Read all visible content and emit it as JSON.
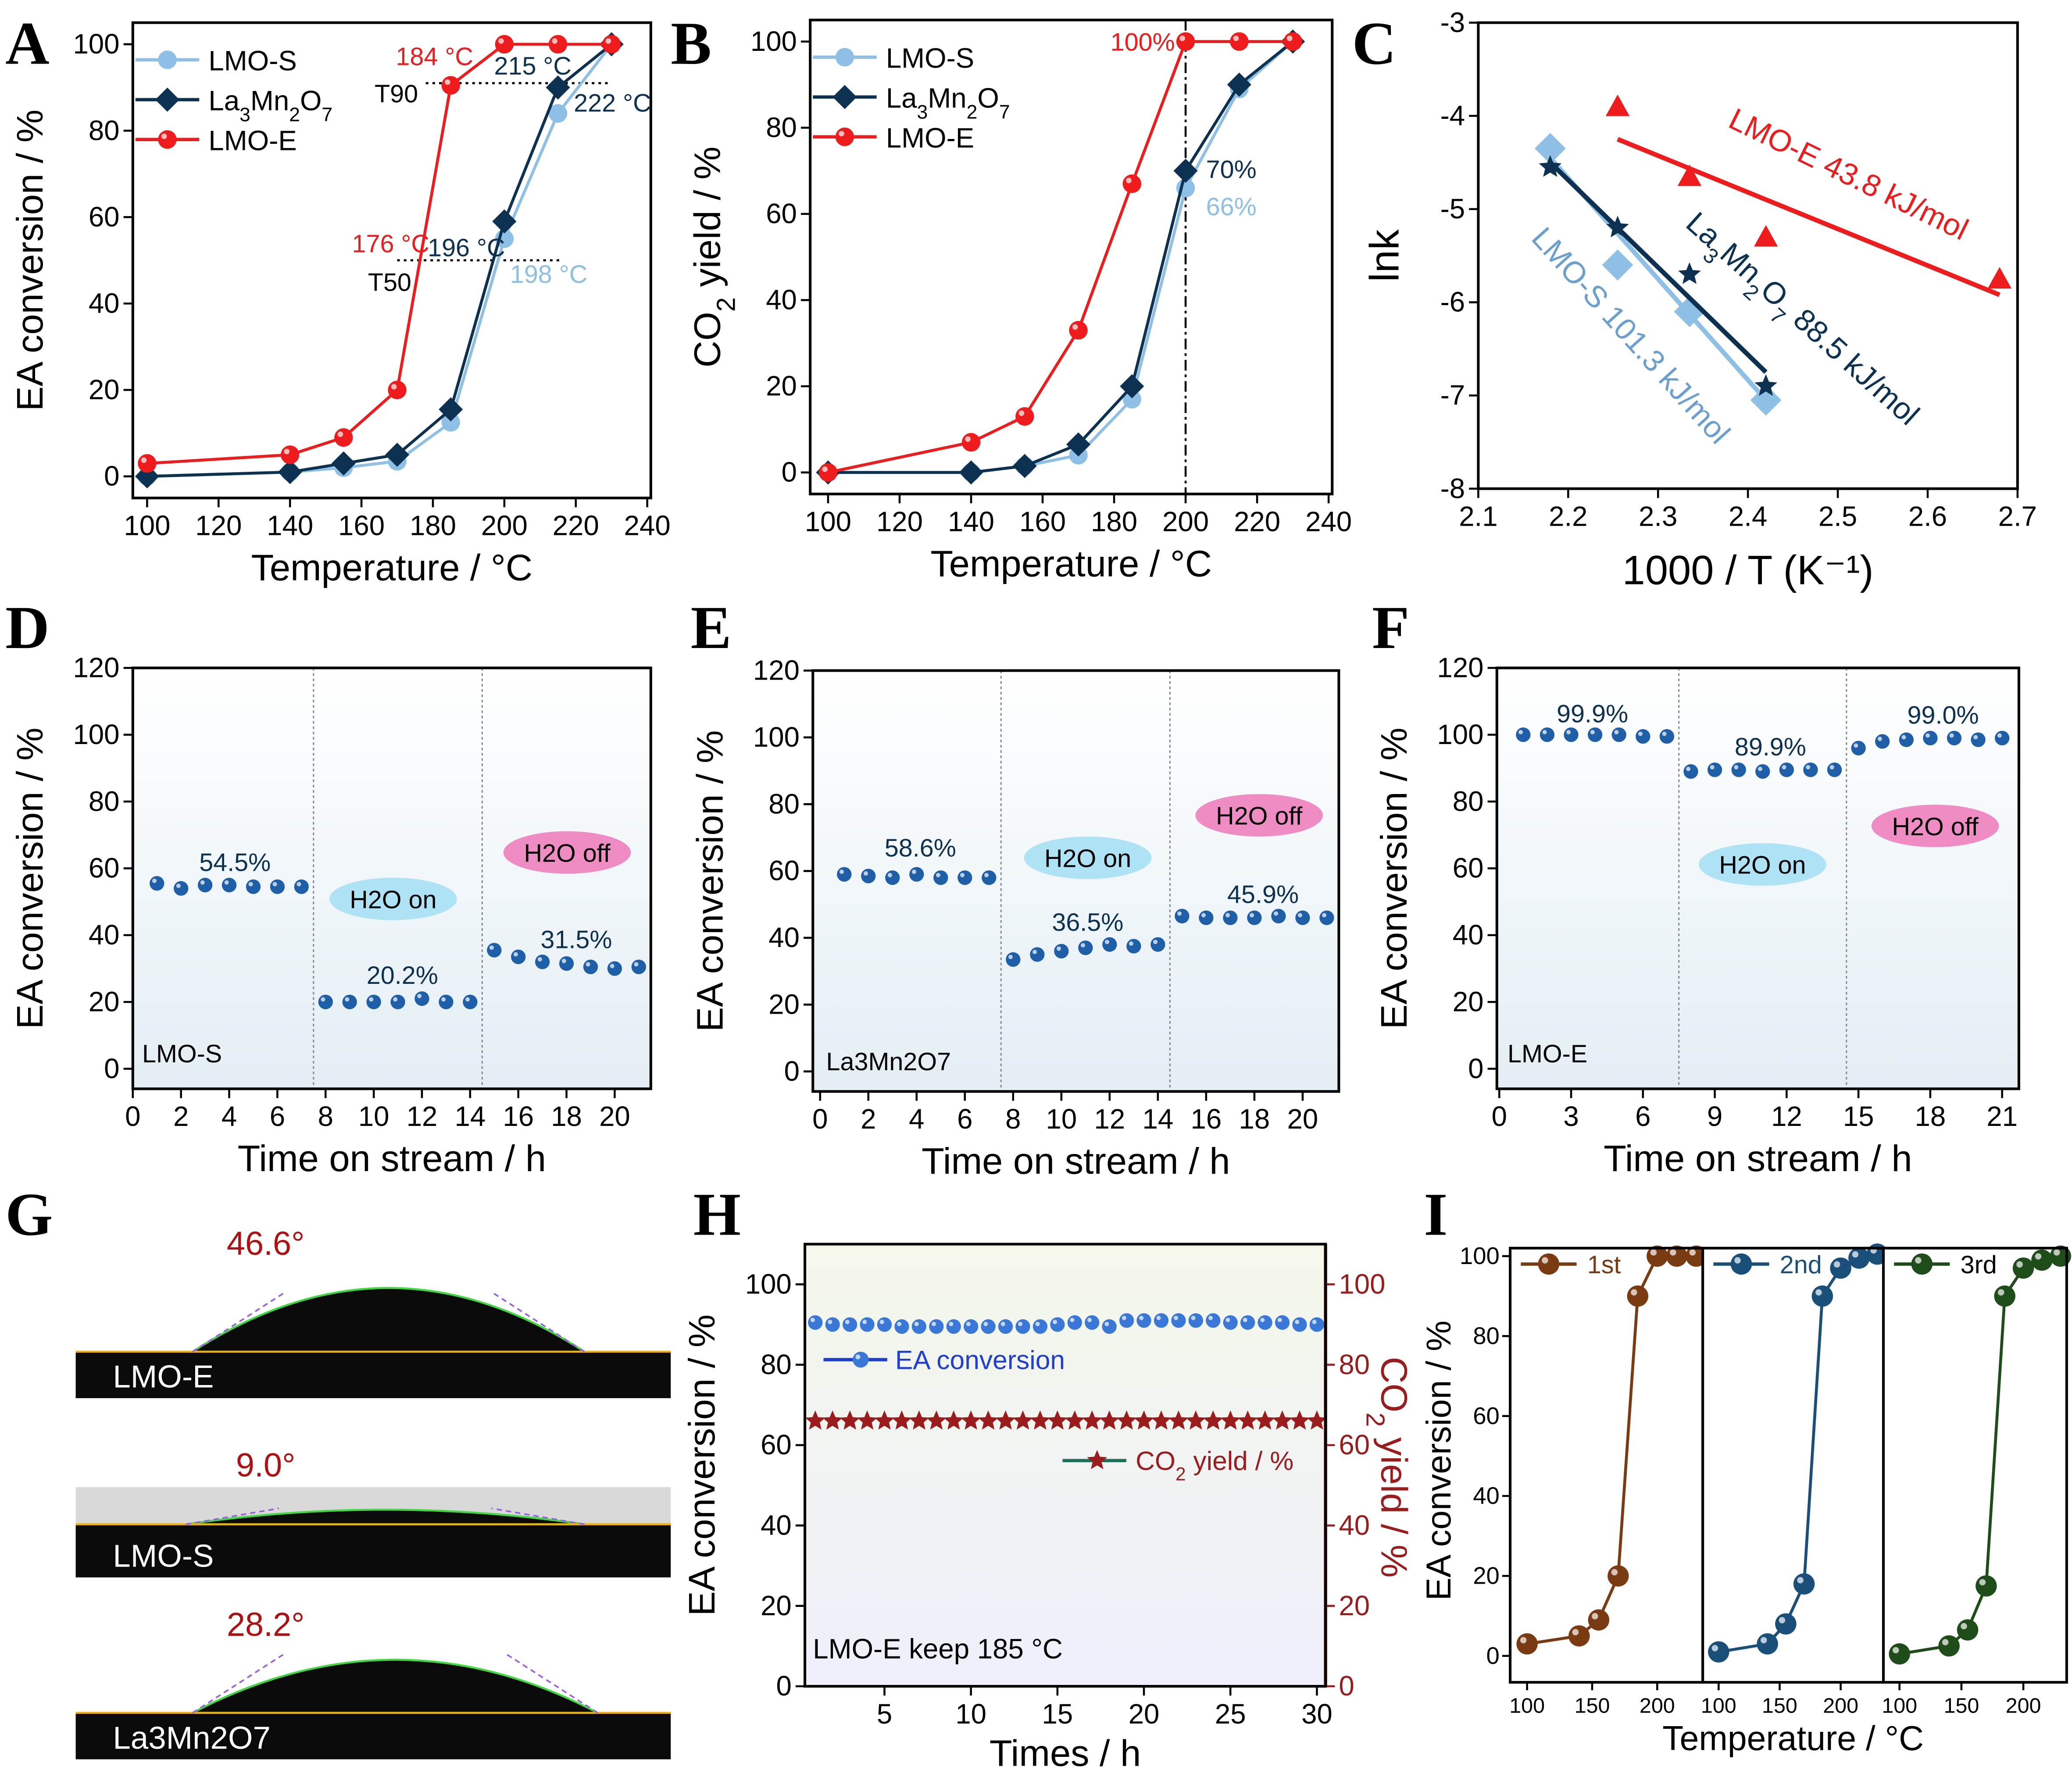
{
  "panel_labels": [
    "A",
    "B",
    "C",
    "D",
    "E",
    "F",
    "G",
    "H",
    "I"
  ],
  "colors": {
    "LMO-S": "#8ec0e6",
    "La3Mn2O7": "#0d3150",
    "LMO-E": "#ee1c1c",
    "stability_dots": "#1f5fa8",
    "h2o_on": "#aee2f5",
    "h2o_off": "#f08cc4",
    "co2_axis": "#9b1c1c"
  },
  "contact_angles": [
    {
      "sample": "LMO-E",
      "angle": "46.6°"
    },
    {
      "sample": "LMO-S",
      "angle": "9.0°"
    },
    {
      "sample": "La3Mn2O7",
      "angle": "28.2°"
    }
  ],
  "chart_data": [
    {
      "panel": "A",
      "type": "line",
      "xlabel": "Temperature / °C",
      "ylabel": "EA conversion / %",
      "xlim": [
        96,
        241
      ],
      "ylim": [
        -5,
        105
      ],
      "xticks": [
        100,
        120,
        140,
        160,
        180,
        200,
        220,
        240
      ],
      "yticks": [
        0,
        20,
        40,
        60,
        80,
        100
      ],
      "legend": "top-left",
      "series": [
        {
          "name": "LMO-S",
          "color": "#8ec0e6",
          "marker": "circle",
          "x": [
            100,
            140,
            155,
            170,
            185,
            200,
            215,
            230
          ],
          "y": [
            0,
            1,
            2,
            3.5,
            12.5,
            55,
            84,
            100
          ]
        },
        {
          "name": "La3Mn2O7",
          "color": "#0d3150",
          "marker": "diamond",
          "x": [
            100,
            140,
            155,
            170,
            185,
            200,
            215,
            230
          ],
          "y": [
            0,
            1,
            3,
            5,
            15.5,
            59,
            90,
            100
          ]
        },
        {
          "name": "LMO-E",
          "color": "#ee1c1c",
          "marker": "sphere",
          "x": [
            100,
            140,
            155,
            170,
            185,
            200,
            215,
            230
          ],
          "y": [
            3,
            5,
            9,
            20,
            90.5,
            100,
            100,
            100
          ]
        }
      ],
      "annotations": [
        {
          "text": "184 °C",
          "color": "#ee1c1c"
        },
        {
          "text": "215 °C",
          "color": "#0d3150"
        },
        {
          "text": "T90",
          "color": "#000000"
        },
        {
          "text": "222 °C",
          "color": "#0d3150"
        },
        {
          "text": "176 °C",
          "color": "#ee1c1c"
        },
        {
          "text": "196 °C",
          "color": "#0d3150"
        },
        {
          "text": "T50",
          "color": "#000000"
        },
        {
          "text": "198 °C",
          "color": "#8ec0e6"
        }
      ]
    },
    {
      "panel": "B",
      "type": "line",
      "xlabel": "Temperature / °C",
      "ylabel": "CO2 yield / %",
      "xlim": [
        95,
        241
      ],
      "ylim": [
        -5,
        105
      ],
      "xticks": [
        100,
        120,
        140,
        160,
        180,
        200,
        220,
        240
      ],
      "yticks": [
        0,
        20,
        40,
        60,
        80,
        100
      ],
      "legend": "top-left",
      "series": [
        {
          "name": "LMO-S",
          "color": "#8ec0e6",
          "marker": "circle",
          "x": [
            100,
            140,
            155,
            170,
            185,
            200,
            215,
            230
          ],
          "y": [
            0,
            0,
            1.5,
            4,
            17,
            66,
            89,
            100
          ]
        },
        {
          "name": "La3Mn2O7",
          "color": "#0d3150",
          "marker": "diamond",
          "x": [
            100,
            140,
            155,
            170,
            185,
            200,
            215,
            230
          ],
          "y": [
            0,
            0,
            1.5,
            6.5,
            20,
            70,
            90,
            100
          ]
        },
        {
          "name": "LMO-E",
          "color": "#ee1c1c",
          "marker": "sphere",
          "x": [
            100,
            140,
            155,
            170,
            185,
            200,
            215,
            230
          ],
          "y": [
            0,
            7,
            13,
            33,
            67,
            100,
            100,
            100
          ]
        }
      ],
      "annotations": [
        {
          "text": "100%",
          "color": "#ee1c1c"
        },
        {
          "text": "70%",
          "color": "#0d3150"
        },
        {
          "text": "66%",
          "color": "#8ec0e6"
        }
      ]
    },
    {
      "panel": "C",
      "type": "scatter",
      "xlabel": "1000 / T (K⁻¹)",
      "ylabel": "lnk",
      "xlim": [
        2.1,
        2.7
      ],
      "ylim": [
        -8,
        -3
      ],
      "xticks": [
        2.1,
        2.2,
        2.3,
        2.4,
        2.5,
        2.6,
        2.7
      ],
      "yticks": [
        -3,
        -4,
        -5,
        -6,
        -7,
        -8
      ],
      "series": [
        {
          "name": "LMO-E",
          "color": "#ee1c1c",
          "marker": "triangle",
          "x": [
            2.255,
            2.335,
            2.42,
            2.68
          ],
          "y": [
            -3.9,
            -4.65,
            -5.3,
            -5.75
          ],
          "fit": {
            "x": [
              2.255,
              2.68
            ],
            "y": [
              -4.25,
              -5.92
            ]
          }
        },
        {
          "name": "LMO-S",
          "color": "#8ec0e6",
          "marker": "diamond",
          "x": [
            2.18,
            2.255,
            2.335,
            2.42
          ],
          "y": [
            -4.35,
            -5.6,
            -6.1,
            -7.05
          ],
          "fit": {
            "x": [
              2.18,
              2.42
            ],
            "y": [
              -4.45,
              -7.05
            ]
          }
        },
        {
          "name": "La3Mn2O7",
          "color": "#0d3150",
          "marker": "star",
          "x": [
            2.18,
            2.255,
            2.335,
            2.42
          ],
          "y": [
            -4.55,
            -5.2,
            -5.7,
            -6.9
          ],
          "fit": {
            "x": [
              2.18,
              2.42
            ],
            "y": [
              -4.5,
              -6.75
            ]
          }
        }
      ],
      "annotations": [
        {
          "text": "LMO-E 43.8 kJ/mol",
          "color": "#ee1c1c"
        },
        {
          "text": "La3Mn2O7 88.5 kJ/mol",
          "color": "#0d3150"
        },
        {
          "text": "LMO-S 101.3 kJ/mol",
          "color": "#6a9fd0"
        }
      ]
    },
    {
      "panel": "D",
      "type": "scatter",
      "xlabel": "Time on stream / h",
      "ylabel": "EA conversion / %",
      "xlim": [
        0,
        21.5
      ],
      "ylim": [
        -6,
        120
      ],
      "xticks": [
        0,
        2,
        4,
        6,
        8,
        10,
        12,
        14,
        16,
        18,
        20
      ],
      "yticks": [
        0,
        20,
        40,
        60,
        80,
        100,
        120
      ],
      "dividers": [
        7.5,
        14.5
      ],
      "series": [
        {
          "color": "#1f5fa8",
          "marker": "sphere",
          "x": [
            1,
            2,
            3,
            4,
            5,
            6,
            7,
            8,
            9,
            10,
            11,
            12,
            13,
            14,
            15,
            16,
            17,
            18,
            19,
            20,
            21
          ],
          "y": [
            55.5,
            54,
            55,
            55,
            54.5,
            54.5,
            54.5,
            20,
            20,
            20,
            20,
            21,
            20,
            20,
            35.5,
            33.5,
            32,
            31.5,
            30.5,
            30,
            30.5
          ]
        }
      ],
      "annotations": [
        {
          "text": "54.5%",
          "color": "#0d3150"
        },
        {
          "text": "20.2%",
          "color": "#0d3150"
        },
        {
          "text": "31.5%",
          "color": "#0d3150"
        },
        {
          "text": "LMO-S",
          "color": "#000000"
        }
      ],
      "bubbles": [
        {
          "text": "H2O on",
          "color": "#aee2f5"
        },
        {
          "text": "H2O off",
          "color": "#f08cc4"
        }
      ]
    },
    {
      "panel": "E",
      "type": "scatter",
      "xlabel": "Time on stream / h",
      "ylabel": "EA conversion / %",
      "xlim": [
        -0.3,
        21.5
      ],
      "ylim": [
        -6,
        120
      ],
      "xticks": [
        0,
        2,
        4,
        6,
        8,
        10,
        12,
        14,
        16,
        18,
        20
      ],
      "yticks": [
        0,
        20,
        40,
        60,
        80,
        100,
        120
      ],
      "dividers": [
        7.5,
        14.5
      ],
      "series": [
        {
          "color": "#1f5fa8",
          "marker": "sphere",
          "x": [
            1,
            2,
            3,
            4,
            5,
            6,
            7,
            8,
            9,
            10,
            11,
            12,
            13,
            14,
            15,
            16,
            17,
            18,
            19,
            20,
            21
          ],
          "y": [
            59,
            58.5,
            58,
            59,
            58,
            58,
            58,
            33.5,
            35,
            36,
            37,
            38,
            37.5,
            38,
            46.5,
            46,
            46,
            46,
            46.5,
            46,
            46
          ]
        }
      ],
      "annotations": [
        {
          "text": "58.6%",
          "color": "#0d3150"
        },
        {
          "text": "36.5%",
          "color": "#0d3150"
        },
        {
          "text": "45.9%",
          "color": "#0d3150"
        },
        {
          "text": "La3Mn2O7",
          "color": "#000000"
        }
      ],
      "bubbles": [
        {
          "text": "H2O on",
          "color": "#aee2f5"
        },
        {
          "text": "H2O off",
          "color": "#f08cc4"
        }
      ]
    },
    {
      "panel": "F",
      "type": "scatter",
      "xlabel": "Time on stream / h",
      "ylabel": "EA conversion / %",
      "xlim": [
        -0.1,
        21.7
      ],
      "ylim": [
        -6,
        120
      ],
      "xticks": [
        0,
        3,
        6,
        9,
        12,
        15,
        18,
        21
      ],
      "yticks": [
        0,
        20,
        40,
        60,
        80,
        100,
        120
      ],
      "dividers": [
        7.5,
        14.5
      ],
      "series": [
        {
          "color": "#1f5fa8",
          "marker": "sphere",
          "x": [
            1,
            2,
            3,
            4,
            5,
            6,
            7,
            8,
            9,
            10,
            11,
            12,
            13,
            14,
            15,
            16,
            17,
            18,
            19,
            20,
            21
          ],
          "y": [
            100,
            100,
            100,
            100,
            100,
            99.5,
            99.5,
            89,
            89.5,
            89.5,
            89,
            89.5,
            89.5,
            89.5,
            96,
            98,
            98.5,
            99,
            99,
            98.5,
            99
          ]
        }
      ],
      "annotations": [
        {
          "text": "99.9%",
          "color": "#0d3150"
        },
        {
          "text": "89.9%",
          "color": "#0d3150"
        },
        {
          "text": "99.0%",
          "color": "#0d3150"
        },
        {
          "text": "LMO-E",
          "color": "#000000"
        }
      ],
      "bubbles": [
        {
          "text": "H2O on",
          "color": "#aee2f5"
        },
        {
          "text": "H2O off",
          "color": "#f08cc4"
        }
      ]
    },
    {
      "panel": "H",
      "type": "scatter",
      "xlabel": "Times / h",
      "ylabel": "EA conversion / %",
      "y2label": "CO2 yield / %",
      "xlim": [
        0.4,
        30.5
      ],
      "ylim": [
        0,
        110
      ],
      "y2lim": [
        0,
        110
      ],
      "xticks": [
        5,
        10,
        15,
        20,
        25,
        30
      ],
      "yticks": [
        0,
        20,
        40,
        60,
        80,
        100
      ],
      "y2ticks": [
        0,
        20,
        40,
        60,
        80,
        100
      ],
      "series": [
        {
          "name": "EA conversion",
          "color": "#3a78d8",
          "marker": "sphere",
          "axis": "left",
          "x": [
            1,
            2,
            3,
            4,
            5,
            6,
            7,
            8,
            9,
            10,
            11,
            12,
            13,
            14,
            15,
            16,
            17,
            18,
            19,
            20,
            21,
            22,
            23,
            24,
            25,
            26,
            27,
            28,
            29,
            30
          ],
          "y": [
            90.5,
            90,
            90,
            90,
            90,
            89.5,
            89.5,
            89.5,
            89.5,
            89.5,
            89.5,
            89.5,
            89.5,
            89.5,
            90,
            90.5,
            90.5,
            89.5,
            91,
            91,
            91,
            91,
            91,
            91,
            90.5,
            90.5,
            90.5,
            90.5,
            90,
            90
          ]
        },
        {
          "name": "CO2 yield / %",
          "color": "#9b1c1c",
          "marker": "star",
          "axis": "right",
          "x": [
            1,
            2,
            3,
            4,
            5,
            6,
            7,
            8,
            9,
            10,
            11,
            12,
            13,
            14,
            15,
            16,
            17,
            18,
            19,
            20,
            21,
            22,
            23,
            24,
            25,
            26,
            27,
            28,
            29,
            30
          ],
          "y": [
            66,
            66,
            66,
            66,
            66,
            66,
            66,
            66,
            66,
            66,
            66,
            66,
            66,
            66,
            66,
            66,
            66,
            66,
            66,
            66,
            66,
            66,
            66,
            66,
            66,
            66,
            66,
            66,
            66,
            66
          ]
        }
      ],
      "annotations": [
        {
          "text": "LMO-E keep 185 °C",
          "color": "#000000"
        }
      ]
    },
    {
      "panel": "I",
      "type": "line",
      "xlabel": "Temperature / °C",
      "ylabel": "EA conversion / %",
      "xlim": [
        87,
        235
      ],
      "ylim": [
        -6.6,
        102
      ],
      "xticks": [
        100,
        150,
        200
      ],
      "yticks": [
        0,
        20,
        40,
        60,
        80,
        100
      ],
      "series": [
        {
          "name": "1st",
          "color": "#7a3a12",
          "marker": "sphere",
          "x": [
            100,
            140,
            155,
            170,
            185,
            200,
            215,
            230
          ],
          "y": [
            3,
            5,
            9,
            20,
            90,
            100,
            100,
            100
          ]
        },
        {
          "name": "2nd",
          "color": "#1a4f7a",
          "marker": "sphere",
          "x": [
            100,
            140,
            155,
            170,
            185,
            200,
            215,
            230
          ],
          "y": [
            1,
            3,
            8,
            18,
            90,
            97,
            99.5,
            100.5
          ]
        },
        {
          "name": "3rd",
          "color": "#1f4d1a",
          "marker": "sphere",
          "x": [
            100,
            140,
            155,
            170,
            185,
            200,
            215,
            230
          ],
          "y": [
            0.5,
            2.5,
            6.5,
            17.5,
            90,
            97,
            99,
            100
          ]
        }
      ]
    }
  ]
}
